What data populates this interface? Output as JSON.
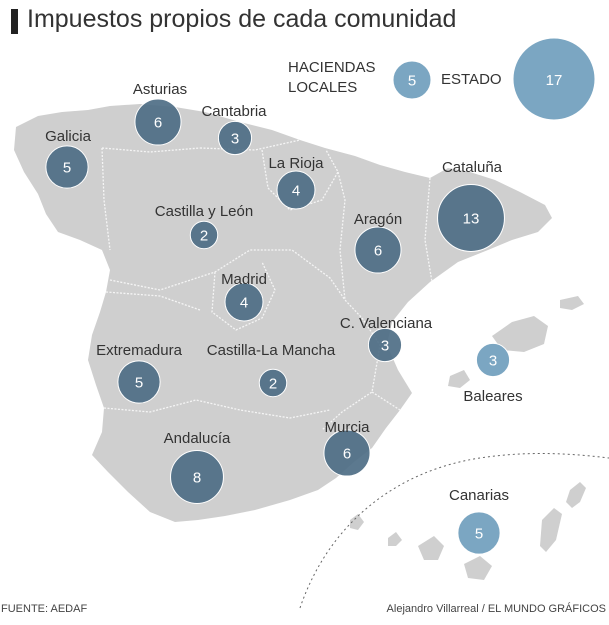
{
  "title": "Impuestos propios de cada comunidad",
  "legend": {
    "haciendas_line1": "HACIENDAS",
    "haciendas_line2": "LOCALES",
    "haciendas_value": "5",
    "estado_label": "ESTADO",
    "estado_value": "17"
  },
  "colors": {
    "land": "#cfcfcf",
    "border": "#f5f5f5",
    "bubble_dark": "#4e6e86",
    "bubble_light": "#7ba6c2",
    "label": "#333333"
  },
  "regions": [
    {
      "name": "Asturias",
      "value": "6",
      "style": "dark"
    },
    {
      "name": "Cantabria",
      "value": "3",
      "style": "dark"
    },
    {
      "name": "Galicia",
      "value": "5",
      "style": "dark"
    },
    {
      "name": "La Rioja",
      "value": "4",
      "style": "dark"
    },
    {
      "name": "Cataluña",
      "value": "13",
      "style": "dark"
    },
    {
      "name": "Castilla y León",
      "value": "2",
      "style": "dark"
    },
    {
      "name": "Aragón",
      "value": "6",
      "style": "dark"
    },
    {
      "name": "Madrid",
      "value": "4",
      "style": "dark"
    },
    {
      "name": "C. Valenciana",
      "value": "3",
      "style": "dark"
    },
    {
      "name": "Extremadura",
      "value": "5",
      "style": "dark"
    },
    {
      "name": "Castilla-La Mancha",
      "value": "2",
      "style": "dark"
    },
    {
      "name": "Baleares",
      "value": "3",
      "style": "light"
    },
    {
      "name": "Andalucía",
      "value": "8",
      "style": "dark"
    },
    {
      "name": "Murcia",
      "value": "6",
      "style": "dark"
    },
    {
      "name": "Canarias",
      "value": "5",
      "style": "light"
    }
  ],
  "footer": {
    "source": "FUENTE: AEDAF",
    "credit": "Alejandro Villarreal / EL MUNDO GRÁFICOS"
  }
}
